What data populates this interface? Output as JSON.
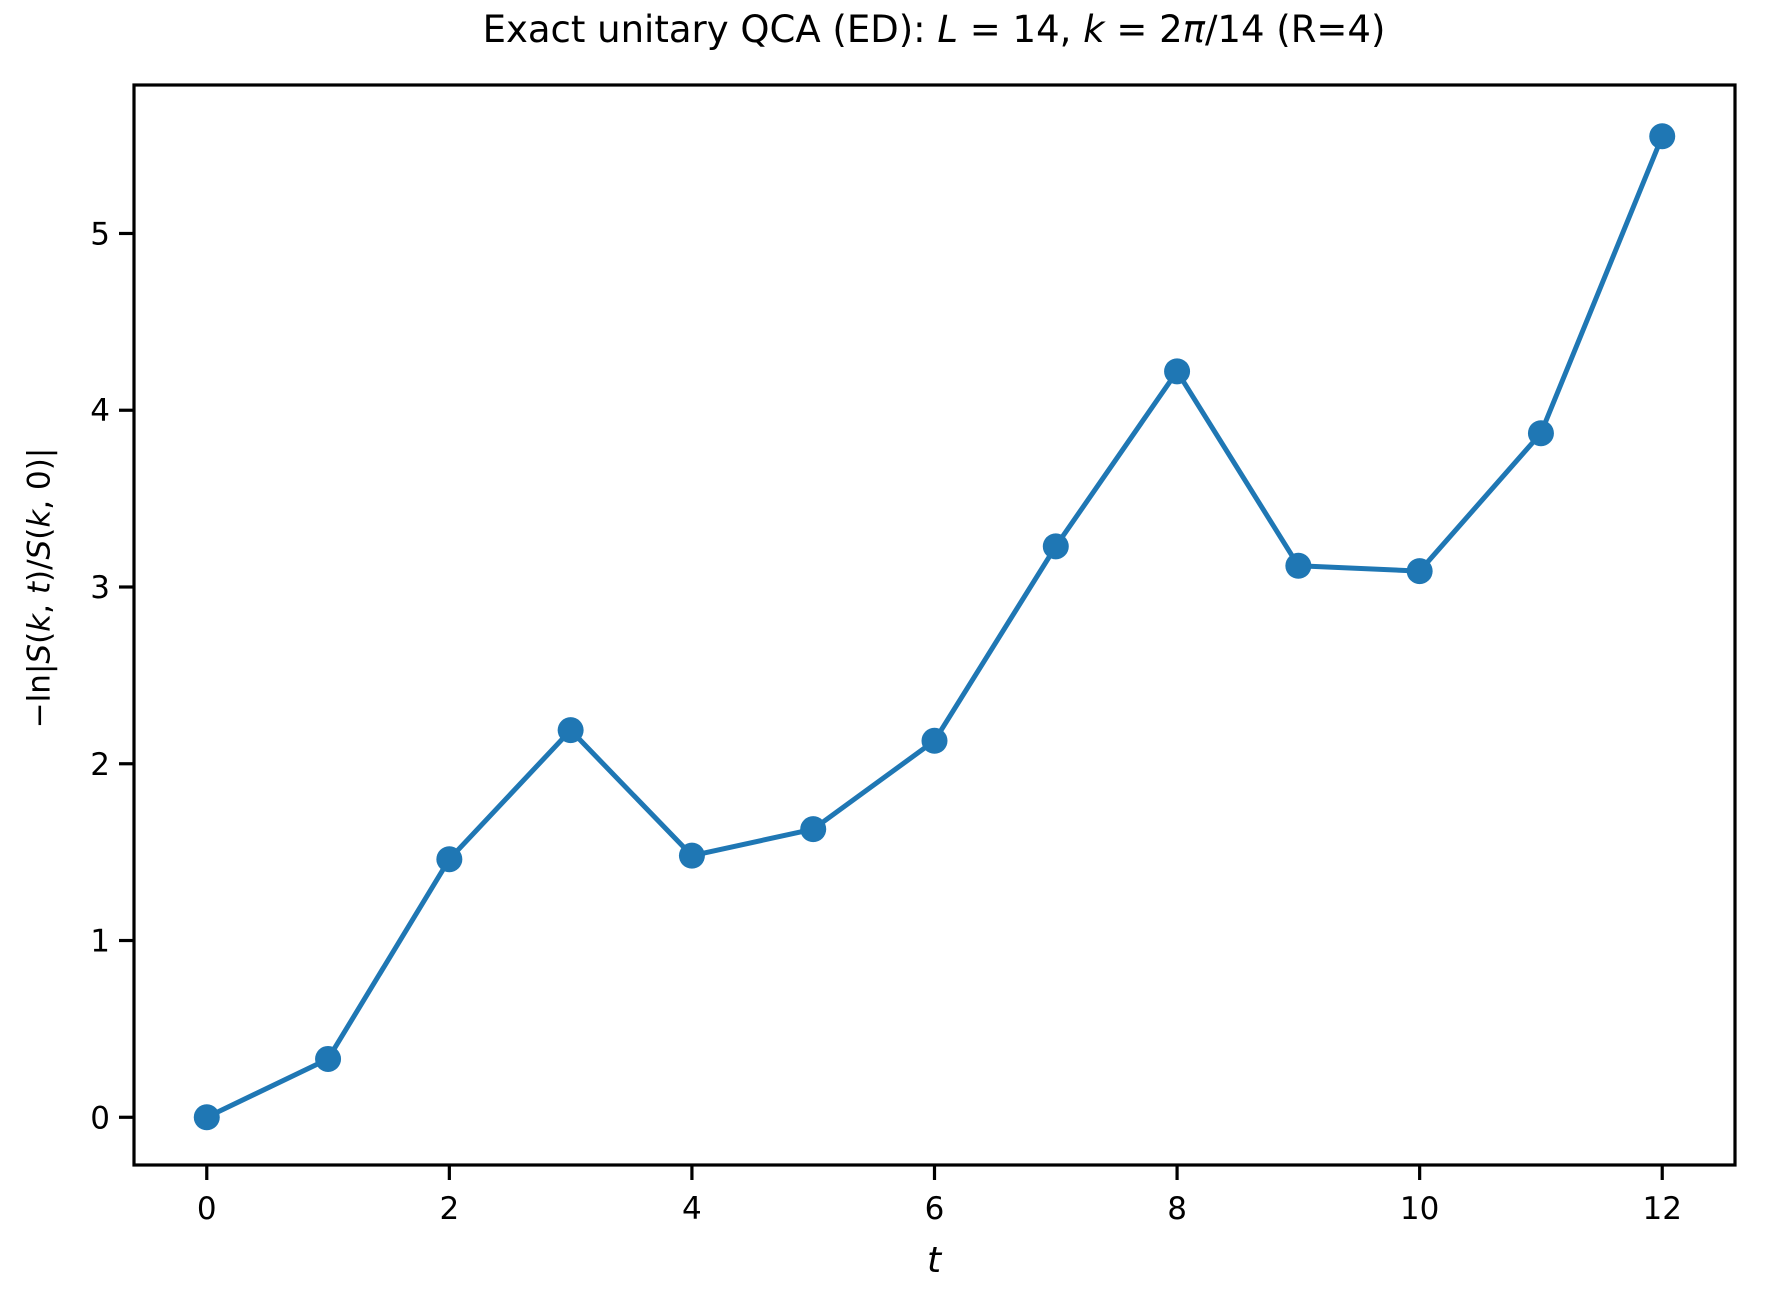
{
  "figure": {
    "background": "#ffffff",
    "text_color": "#000000",
    "title_segments": [
      {
        "text": "Exact unitary QCA (ED): ",
        "italic": false
      },
      {
        "text": "L",
        "italic": true
      },
      {
        "text": " = 14, ",
        "italic": false
      },
      {
        "text": "k",
        "italic": true
      },
      {
        "text": " = 2",
        "italic": false
      },
      {
        "text": "π",
        "italic": true
      },
      {
        "text": "/14 (R=4)",
        "italic": false
      }
    ],
    "ylabel_segments": [
      {
        "text": "−ln|",
        "italic": false
      },
      {
        "text": "S",
        "italic": true
      },
      {
        "text": "(",
        "italic": false
      },
      {
        "text": "k",
        "italic": true
      },
      {
        "text": ", ",
        "italic": false
      },
      {
        "text": "t",
        "italic": true
      },
      {
        "text": ")/",
        "italic": false
      },
      {
        "text": "S",
        "italic": true
      },
      {
        "text": "(",
        "italic": false
      },
      {
        "text": "k",
        "italic": true
      },
      {
        "text": ", 0)|",
        "italic": false
      }
    ],
    "xlabel_segments": [
      {
        "text": "t",
        "italic": true
      }
    ]
  },
  "chart_data": {
    "type": "line",
    "title": "Exact unitary QCA (ED): L = 14, k = 2π/14 (R=4)",
    "xlabel": "t",
    "ylabel": "−ln|S(k, t)/S(k, 0)|",
    "x": [
      0,
      1,
      2,
      3,
      4,
      5,
      6,
      7,
      8,
      9,
      10,
      11,
      12
    ],
    "y": [
      0.0,
      0.33,
      1.46,
      2.19,
      1.48,
      1.63,
      2.13,
      3.23,
      4.22,
      3.12,
      3.09,
      3.87,
      5.55
    ],
    "xticks": [
      0,
      2,
      4,
      6,
      8,
      10,
      12
    ],
    "yticks": [
      0,
      1,
      2,
      3,
      4,
      5
    ],
    "xlim": [
      -0.6,
      12.6
    ],
    "ylim": [
      -0.27,
      5.84
    ],
    "line_color": "#1f77b4",
    "axis_color": "#000000",
    "marker": "circle",
    "marker_size": 13,
    "line_width": 5,
    "grid": false,
    "legend": false
  }
}
